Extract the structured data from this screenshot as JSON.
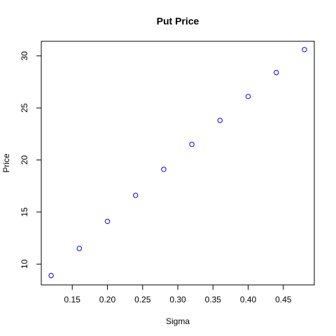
{
  "chart_data": {
    "type": "scatter",
    "title": "Put Price",
    "xlabel": "Sigma",
    "ylabel": "Price",
    "xlim": [
      0.106,
      0.494
    ],
    "ylim": [
      8.0,
      31.4
    ],
    "xticks": [
      0.15,
      0.2,
      0.25,
      0.3,
      0.35,
      0.4,
      0.45
    ],
    "xtick_labels": [
      "0.15",
      "0.20",
      "0.25",
      "0.30",
      "0.35",
      "0.40",
      "0.45"
    ],
    "yticks": [
      10,
      15,
      20,
      25,
      30
    ],
    "ytick_labels": [
      "10",
      "15",
      "20",
      "25",
      "30"
    ],
    "grid": false,
    "marker": "open-circle",
    "point_color": "#0000ff",
    "series": [
      {
        "x": [
          0.12,
          0.16,
          0.2,
          0.24,
          0.28,
          0.32,
          0.36,
          0.4,
          0.44,
          0.48
        ],
        "y": [
          8.9,
          11.5,
          14.1,
          16.6,
          19.1,
          21.5,
          23.8,
          26.1,
          28.4,
          30.6
        ]
      }
    ]
  }
}
